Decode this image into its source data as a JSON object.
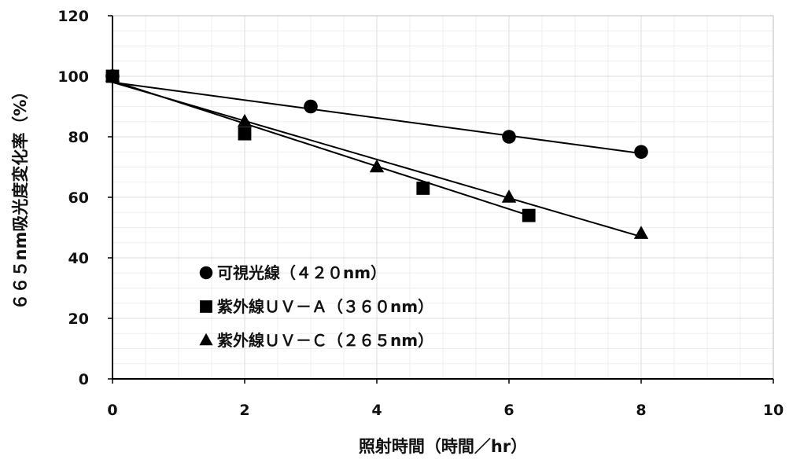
{
  "chart_data": {
    "type": "line",
    "xlabel": "照射時間（時間／hr）",
    "ylabel": "６６５nm吸光度変化率（%）",
    "xlim": [
      0,
      10
    ],
    "ylim": [
      0,
      120
    ],
    "x_ticks": [
      "0",
      "2",
      "4",
      "6",
      "8",
      "10"
    ],
    "y_ticks": [
      "0",
      "20",
      "40",
      "60",
      "80",
      "100",
      "120"
    ],
    "grid": true,
    "legend_position": "bottom-left",
    "series": [
      {
        "name": "可視光線（４２０nm）",
        "marker": "circle",
        "color": "#000000",
        "x": [
          0,
          3,
          6,
          8
        ],
        "y": [
          100,
          90,
          80,
          75
        ]
      },
      {
        "name": "紫外線ＵＶ－Ａ（３６０nm）",
        "marker": "square",
        "color": "#000000",
        "x": [
          0,
          2,
          4.7,
          6.3
        ],
        "y": [
          100,
          81,
          63,
          54
        ]
      },
      {
        "name": "紫外線ＵＶ－Ｃ（２６５nm）",
        "marker": "triangle",
        "color": "#000000",
        "x": [
          0,
          2,
          4,
          6,
          8
        ],
        "y": [
          100,
          85,
          70,
          60,
          48
        ]
      }
    ],
    "trendlines": [
      {
        "series": 0,
        "x": [
          0,
          8
        ],
        "y": [
          98,
          74.5
        ]
      },
      {
        "series": 1,
        "x": [
          0,
          6.3
        ],
        "y": [
          98.5,
          54
        ]
      },
      {
        "series": 2,
        "x": [
          0,
          8
        ],
        "y": [
          98,
          47
        ]
      }
    ]
  }
}
